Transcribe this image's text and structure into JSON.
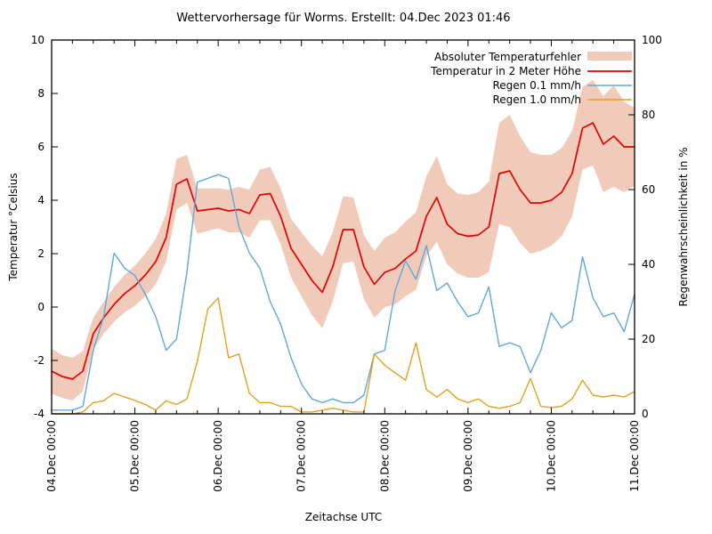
{
  "chart_data": {
    "type": "line",
    "title": "Wettervorhersage für Worms. Erstellt: 04.Dec 2023 01:46",
    "xlabel": "Zeitachse UTC",
    "ylabel_left": "Temperatur °Celsius",
    "ylabel_right": "Regenwahrscheinlichkeit in %",
    "grid": false,
    "legend_position": "top-right-inside",
    "x_range_hours": [
      0,
      168
    ],
    "x_major_tick_hours": 24,
    "x_minor_tick_hours": 6,
    "x_tick_labels": [
      "04.Dec 00:00",
      "05.Dec 00:00",
      "06.Dec 00:00",
      "07.Dec 00:00",
      "08.Dec 00:00",
      "09.Dec 00:00",
      "10.Dec 00:00",
      "11.Dec 00:00"
    ],
    "y_left_range": [
      -4,
      10
    ],
    "y_left_ticks": [
      -4,
      -2,
      0,
      2,
      4,
      6,
      8,
      10
    ],
    "y_right_range": [
      0,
      100
    ],
    "y_right_ticks": [
      0,
      20,
      40,
      60,
      80,
      100
    ],
    "sample_hours": [
      0,
      3,
      6,
      9,
      12,
      15,
      18,
      21,
      24,
      27,
      30,
      33,
      36,
      39,
      42,
      45,
      48,
      51,
      54,
      57,
      60,
      63,
      66,
      69,
      72,
      75,
      78,
      81,
      84,
      87,
      90,
      93,
      96,
      99,
      102,
      105,
      108,
      111,
      114,
      117,
      120,
      123,
      126,
      129,
      132,
      135,
      138,
      141,
      144,
      147,
      150,
      153,
      156,
      159,
      162,
      165,
      168
    ],
    "series": [
      {
        "name": "Absoluter Temperaturfehler",
        "type": "band",
        "axis": "left",
        "color": "#f1cbba",
        "upper": [
          -1.55,
          -1.8,
          -1.9,
          -1.65,
          -0.4,
          0.2,
          0.75,
          1.2,
          1.55,
          2.0,
          2.55,
          3.5,
          5.55,
          5.7,
          4.45,
          4.45,
          4.45,
          4.4,
          4.5,
          4.4,
          5.15,
          5.25,
          4.45,
          3.3,
          2.8,
          2.3,
          1.9,
          2.8,
          4.15,
          4.1,
          2.7,
          2.1,
          2.6,
          2.8,
          3.2,
          3.55,
          4.9,
          5.65,
          4.6,
          4.25,
          4.2,
          4.3,
          4.7,
          6.9,
          7.2,
          6.4,
          5.8,
          5.7,
          5.7,
          5.95,
          6.6,
          8.25,
          8.5,
          7.9,
          8.3,
          7.7,
          7.45
        ],
        "lower": [
          -3.25,
          -3.4,
          -3.5,
          -3.15,
          -1.6,
          -1.0,
          -0.55,
          -0.2,
          0.05,
          0.4,
          0.85,
          1.7,
          3.65,
          3.9,
          2.75,
          2.85,
          2.95,
          2.8,
          2.8,
          2.6,
          3.25,
          3.25,
          2.35,
          1.1,
          0.4,
          -0.3,
          -0.8,
          0.2,
          1.65,
          1.7,
          0.3,
          -0.4,
          0.0,
          0.1,
          0.4,
          0.65,
          1.9,
          2.45,
          1.6,
          1.25,
          1.1,
          1.1,
          1.3,
          3.1,
          3.0,
          2.4,
          2.0,
          2.1,
          2.3,
          2.65,
          3.4,
          5.15,
          5.3,
          4.3,
          4.5,
          4.3,
          4.55
        ]
      },
      {
        "name": "Temperatur in 2 Meter Höhe",
        "type": "line",
        "axis": "left",
        "color": "#e60000",
        "values": [
          -2.4,
          -2.6,
          -2.7,
          -2.4,
          -1.0,
          -0.4,
          0.1,
          0.5,
          0.8,
          1.2,
          1.7,
          2.6,
          4.6,
          4.8,
          3.6,
          3.65,
          3.7,
          3.6,
          3.65,
          3.5,
          4.2,
          4.25,
          3.4,
          2.2,
          1.6,
          1.0,
          0.55,
          1.5,
          2.9,
          2.9,
          1.5,
          0.85,
          1.3,
          1.45,
          1.8,
          2.1,
          3.4,
          4.1,
          3.1,
          2.75,
          2.65,
          2.7,
          3.0,
          5.0,
          5.1,
          4.4,
          3.9,
          3.9,
          4.0,
          4.3,
          5.0,
          6.7,
          6.9,
          6.1,
          6.4,
          6.0,
          6.0
        ]
      },
      {
        "name": "Regen 0.1 mm/h",
        "type": "line",
        "axis": "right",
        "color": "#5fa8dc",
        "values": [
          1,
          1,
          1,
          2,
          17,
          26,
          43,
          39,
          37,
          32,
          26,
          17,
          20,
          38,
          62,
          63,
          64,
          63,
          50,
          43,
          39,
          30,
          24,
          15,
          8,
          4,
          3,
          4,
          3,
          3,
          5,
          16,
          17,
          33,
          41,
          36,
          45,
          33,
          35,
          30,
          26,
          27,
          34,
          18,
          19,
          18,
          11,
          17,
          27,
          23,
          25,
          42,
          31,
          26,
          27,
          22,
          32
        ]
      },
      {
        "name": "Regen 1.0 mm/h",
        "type": "line",
        "axis": "right",
        "color": "#e3a021",
        "values": [
          0,
          0,
          0,
          0.5,
          3,
          3.5,
          5.5,
          4.5,
          3.6,
          2.5,
          1,
          3.5,
          2.5,
          4,
          14,
          28,
          31,
          15,
          16,
          5.5,
          3,
          3,
          2,
          2,
          0.5,
          0.5,
          1,
          1.5,
          1,
          0.5,
          0.5,
          16,
          13,
          11,
          9,
          19,
          6.5,
          4.5,
          6.5,
          4,
          3,
          4,
          2,
          1.5,
          2,
          3,
          9.5,
          2,
          1.7,
          2,
          4,
          9,
          5,
          4.5,
          5,
          4.5,
          6
        ]
      }
    ]
  }
}
